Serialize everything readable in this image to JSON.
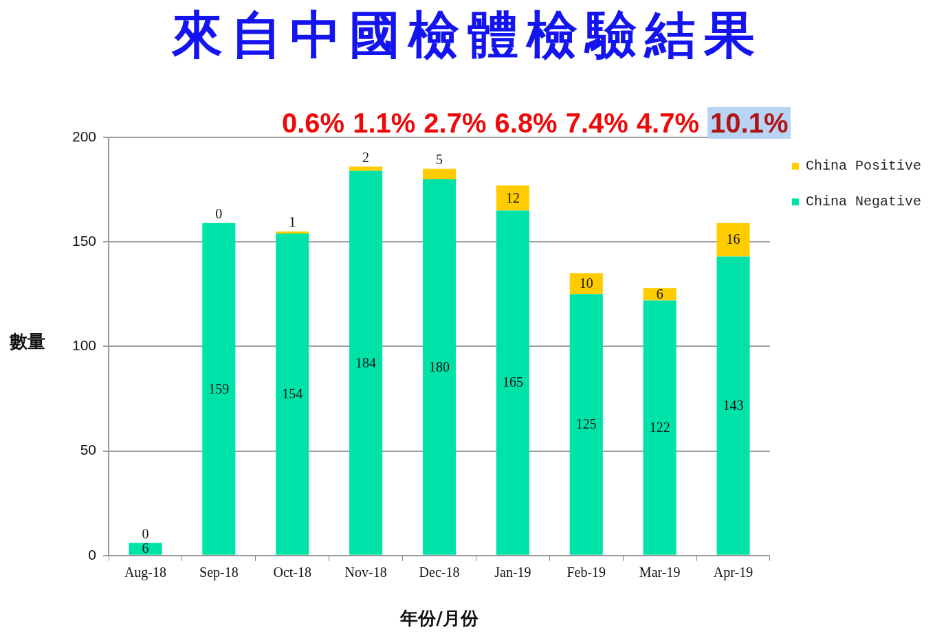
{
  "chart_data": {
    "type": "bar",
    "title": "來自中國檢體檢驗結果",
    "xlabel": "年份/月份",
    "ylabel": "數量",
    "annotations": [
      "0.6%",
      "1.1%",
      "2.7%",
      "6.8%",
      "7.4%",
      "4.7%",
      "10.1%"
    ],
    "categories": [
      "Aug-18",
      "Sep-18",
      "Oct-18",
      "Nov-18",
      "Dec-18",
      "Jan-19",
      "Feb-19",
      "Mar-19",
      "Apr-19"
    ],
    "series": [
      {
        "name": "China Negative",
        "color": "#00e3a8",
        "values": [
          6,
          159,
          154,
          184,
          180,
          165,
          125,
          122,
          143
        ]
      },
      {
        "name": "China Positive",
        "color": "#ffcc00",
        "values": [
          0,
          0,
          1,
          2,
          5,
          12,
          10,
          6,
          16
        ]
      }
    ],
    "stacked": true,
    "ylim": [
      0,
      200
    ],
    "yticks": [
      0,
      50,
      100,
      150,
      200
    ],
    "grid": "y",
    "data_labels": true,
    "legend": "right"
  }
}
